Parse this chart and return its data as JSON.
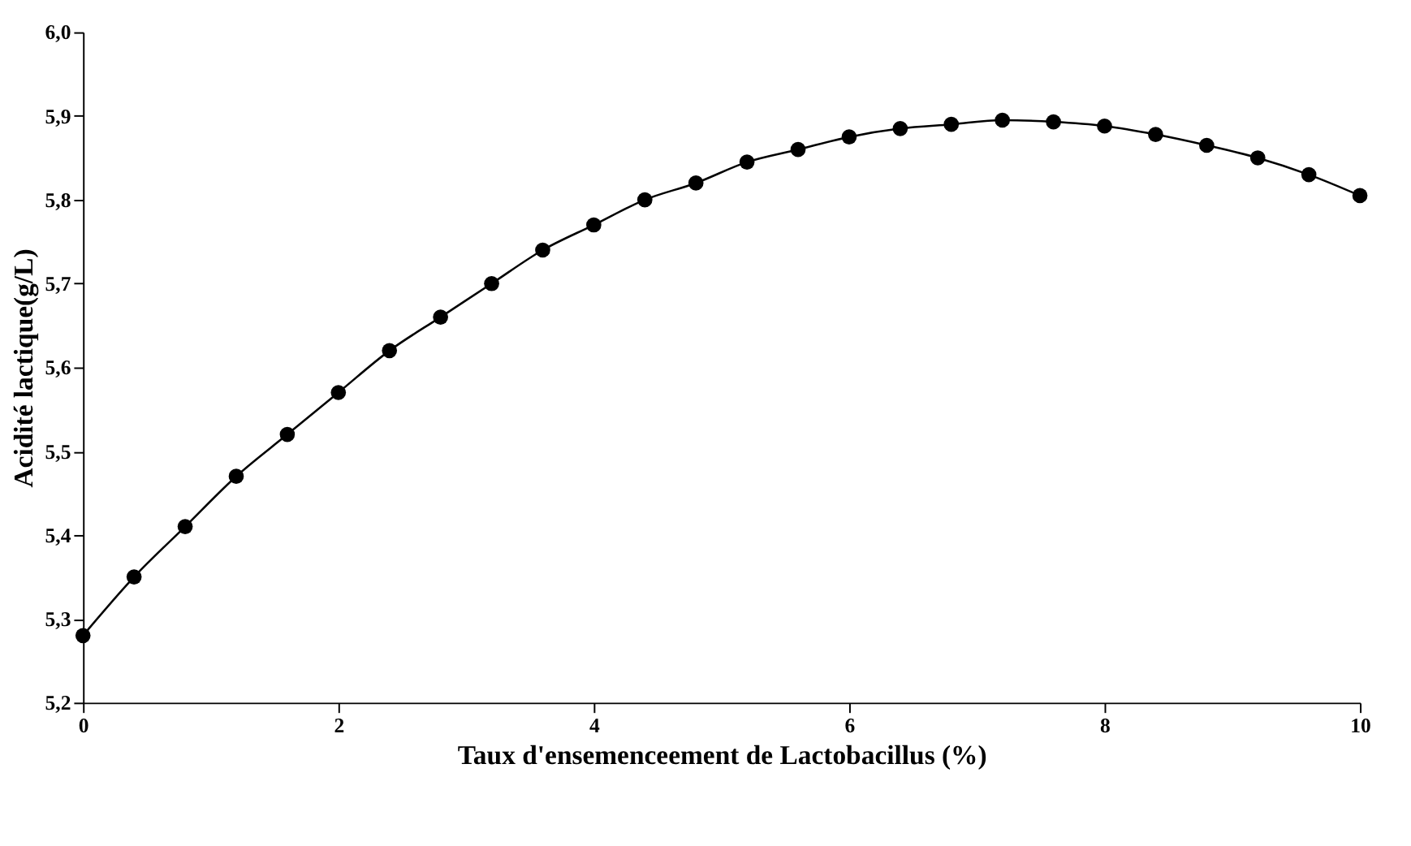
{
  "chart_data": {
    "type": "line",
    "xlabel": "Taux d'ensemenceement de Lactobacillus (%)",
    "ylabel": "Acidité lactique(g/L)",
    "x": [
      0,
      0.4,
      0.8,
      1.2,
      1.6,
      2.0,
      2.4,
      2.8,
      3.2,
      3.6,
      4.0,
      4.4,
      4.8,
      5.2,
      5.6,
      6.0,
      6.4,
      6.8,
      7.2,
      7.6,
      8.0,
      8.4,
      8.8,
      9.2,
      9.6,
      10.0
    ],
    "series": [
      {
        "color": "#000000",
        "values": [
          5.28,
          5.35,
          5.41,
          5.47,
          5.52,
          5.57,
          5.62,
          5.66,
          5.7,
          5.74,
          5.77,
          5.8,
          5.82,
          5.845,
          5.86,
          5.875,
          5.885,
          5.89,
          5.895,
          5.893,
          5.888,
          5.878,
          5.865,
          5.85,
          5.83,
          5.805
        ]
      }
    ],
    "xlim": [
      0,
      10
    ],
    "xticks": [
      0,
      2,
      4,
      6,
      8,
      10
    ],
    "ylim": [
      5.2,
      6.0
    ],
    "yticks": [
      {
        "value": 5.2,
        "label": "5,2"
      },
      {
        "value": 5.3,
        "label": "5,3"
      },
      {
        "value": 5.4,
        "label": "5,4"
      },
      {
        "value": 5.5,
        "label": "5,5"
      },
      {
        "value": 5.6,
        "label": "5,6"
      },
      {
        "value": 5.7,
        "label": "5,7"
      },
      {
        "value": 5.8,
        "label": "5,8"
      },
      {
        "value": 5.9,
        "label": "5,9"
      },
      {
        "value": 6.0,
        "label": "6,0"
      }
    ],
    "marker": "circle",
    "line_style": "solid"
  }
}
